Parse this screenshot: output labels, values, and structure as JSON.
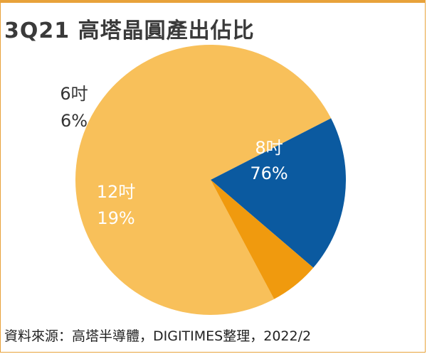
{
  "title": "3Q21 高塔晶圓產出佔比",
  "source": "資料來源：高塔半導體，DIGITIMES整理，2022/2",
  "colors": {
    "frame": "#e8a23a",
    "title": "#3a3a3a",
    "text_on_light": "#ffffff",
    "text_outside": "#333333"
  },
  "chart_data": {
    "type": "pie",
    "title": "3Q21 高塔晶圓產出佔比",
    "slices": [
      {
        "name": "8吋",
        "value": 76,
        "pct_label": "76%",
        "color": "#f8c05a"
      },
      {
        "name": "12吋",
        "value": 19,
        "pct_label": "19%",
        "color": "#0b5aa0"
      },
      {
        "name": "6吋",
        "value": 6,
        "pct_label": "6%",
        "color": "#f09a0e"
      }
    ],
    "start_angle_deg": 62,
    "direction": "clockwise"
  }
}
